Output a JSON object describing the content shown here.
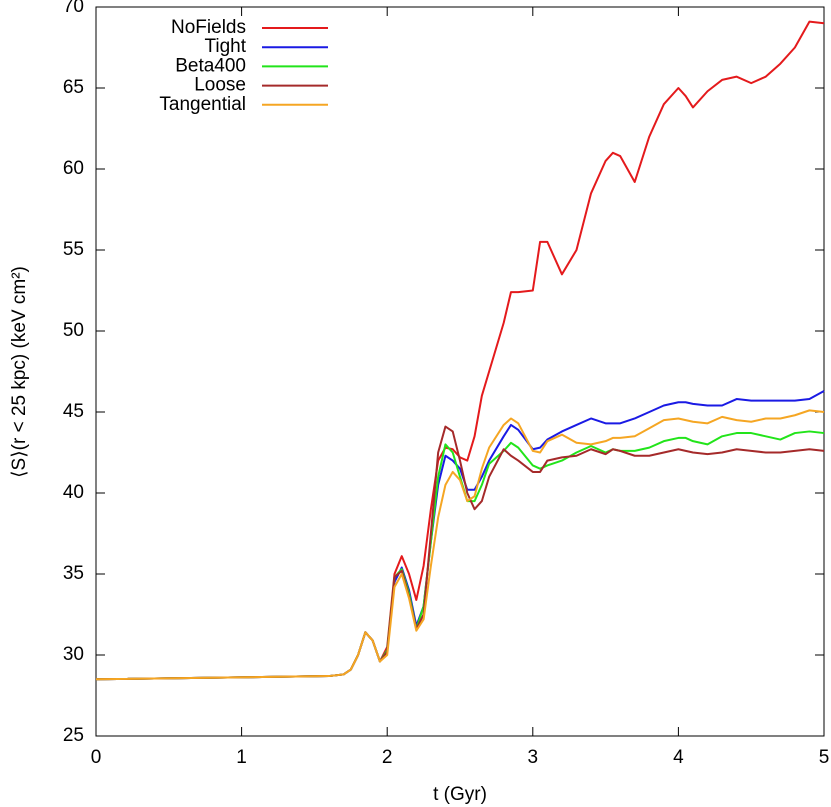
{
  "chart_data": {
    "type": "line",
    "xlabel": "t (Gyr)",
    "ylabel": "⟨S⟩(r < 25 kpc) (keV cm²)",
    "x": [
      0,
      1.6,
      1.7,
      1.75,
      1.8,
      1.85,
      1.9,
      1.95,
      2.0,
      2.05,
      2.1,
      2.15,
      2.2,
      2.25,
      2.3,
      2.35,
      2.4,
      2.45,
      2.5,
      2.55,
      2.6,
      2.65,
      2.7,
      2.8,
      2.85,
      2.9,
      3.0,
      3.05,
      3.1,
      3.2,
      3.3,
      3.4,
      3.5,
      3.55,
      3.6,
      3.7,
      3.8,
      3.9,
      4.0,
      4.05,
      4.1,
      4.2,
      4.3,
      4.4,
      4.5,
      4.6,
      4.7,
      4.8,
      4.9,
      5.0
    ],
    "series": [
      {
        "name": "NoFields",
        "color": "#e41a1c",
        "values": [
          28.5,
          28.7,
          28.8,
          29.1,
          30,
          31.4,
          30.9,
          29.6,
          30.5,
          35.0,
          36.1,
          35.0,
          33.4,
          35.5,
          39,
          42,
          42.8,
          42.7,
          42.2,
          42.0,
          43.5,
          46,
          47.5,
          50.5,
          52.4,
          52.4,
          52.5,
          55.5,
          55.5,
          53.5,
          55,
          58.5,
          60.5,
          61,
          60.8,
          59.2,
          62,
          64,
          65,
          64.5,
          63.8,
          64.8,
          65.5,
          65.7,
          65.3,
          65.7,
          66.5,
          67.5,
          69.1,
          69
        ]
      },
      {
        "name": "Tight",
        "color": "#1a1ae4",
        "values": [
          28.5,
          28.7,
          28.8,
          29.1,
          30,
          31.4,
          30.9,
          29.6,
          30.3,
          34.5,
          35.4,
          34,
          31.8,
          33,
          37,
          40.5,
          42.3,
          42,
          41.5,
          40.2,
          40.2,
          41,
          42,
          43.5,
          44.2,
          43.9,
          42.7,
          42.8,
          43.3,
          43.8,
          44.2,
          44.6,
          44.3,
          44.3,
          44.3,
          44.6,
          45,
          45.4,
          45.6,
          45.6,
          45.5,
          45.4,
          45.4,
          45.8,
          45.7,
          45.7,
          45.7,
          45.7,
          45.8,
          46.3
        ]
      },
      {
        "name": "Beta400",
        "color": "#22e41a",
        "values": [
          28.5,
          28.7,
          28.8,
          29.1,
          30,
          31.4,
          30.9,
          29.6,
          30.3,
          34.8,
          35.3,
          33.8,
          31.6,
          33,
          37,
          41,
          43,
          42.5,
          41,
          39.5,
          39.5,
          40.5,
          41.8,
          42.6,
          43.1,
          42.8,
          41.7,
          41.5,
          41.7,
          42,
          42.5,
          42.9,
          42.5,
          42.7,
          42.6,
          42.6,
          42.8,
          43.2,
          43.4,
          43.4,
          43.2,
          43,
          43.5,
          43.7,
          43.7,
          43.5,
          43.3,
          43.7,
          43.8,
          43.7
        ]
      },
      {
        "name": "Loose",
        "color": "#a52a2a",
        "values": [
          28.5,
          28.7,
          28.8,
          29.1,
          30,
          31.4,
          30.9,
          29.6,
          30.2,
          34.8,
          35.2,
          33.6,
          31.6,
          32.5,
          37.5,
          42.5,
          44.1,
          43.8,
          42,
          40,
          39,
          39.5,
          41,
          42.7,
          42.3,
          42,
          41.3,
          41.3,
          42,
          42.2,
          42.3,
          42.7,
          42.4,
          42.7,
          42.6,
          42.3,
          42.3,
          42.5,
          42.7,
          42.6,
          42.5,
          42.4,
          42.5,
          42.7,
          42.6,
          42.5,
          42.5,
          42.6,
          42.7,
          42.6
        ]
      },
      {
        "name": "Tangential",
        "color": "#f5a623",
        "values": [
          28.5,
          28.7,
          28.8,
          29.1,
          30,
          31.4,
          30.9,
          29.6,
          30.0,
          34.2,
          35.0,
          33.5,
          31.5,
          32.2,
          35.5,
          38.5,
          40.5,
          41.3,
          40.8,
          39.5,
          39.8,
          41.5,
          42.8,
          44.2,
          44.6,
          44.3,
          42.6,
          42.5,
          43.2,
          43.6,
          43.1,
          43,
          43.2,
          43.4,
          43.4,
          43.5,
          44,
          44.5,
          44.6,
          44.5,
          44.4,
          44.3,
          44.7,
          44.5,
          44.4,
          44.6,
          44.6,
          44.8,
          45.1,
          45.0
        ]
      }
    ],
    "xlim": [
      0,
      5
    ],
    "xticks": [
      0,
      1,
      2,
      3,
      4,
      5
    ],
    "ylim": [
      25,
      70
    ],
    "yticks": [
      25,
      30,
      35,
      40,
      45,
      50,
      55,
      60,
      65,
      70
    ],
    "grid": false,
    "legend": "upper left"
  }
}
